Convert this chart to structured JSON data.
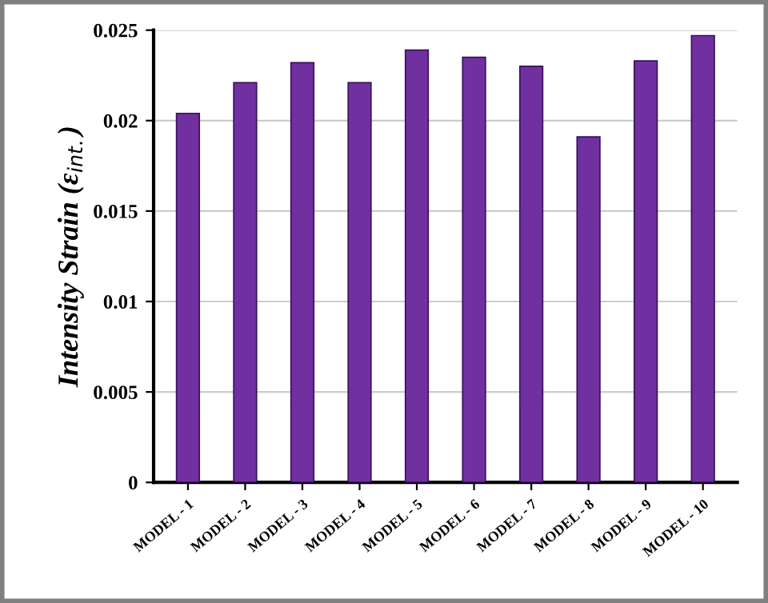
{
  "chart_data": {
    "type": "bar",
    "ylabel": "Intensity Strain (ε$_{int.}$)",
    "categories": [
      "MODEL - 1",
      "MODEL - 2",
      "MODEL - 3",
      "MODEL - 4",
      "MODEL - 5",
      "MODEL - 6",
      "MODEL - 7",
      "MODEL - 8",
      "MODEL - 9",
      "MODEL - 10"
    ],
    "values": [
      0.0204,
      0.0221,
      0.0232,
      0.0221,
      0.0239,
      0.0235,
      0.023,
      0.0191,
      0.0233,
      0.0247
    ],
    "color": "#7030a0",
    "ylim": [
      0,
      0.025
    ],
    "yticks": [
      0,
      0.005,
      0.01,
      0.015,
      0.02,
      0.025
    ],
    "grid": true
  }
}
